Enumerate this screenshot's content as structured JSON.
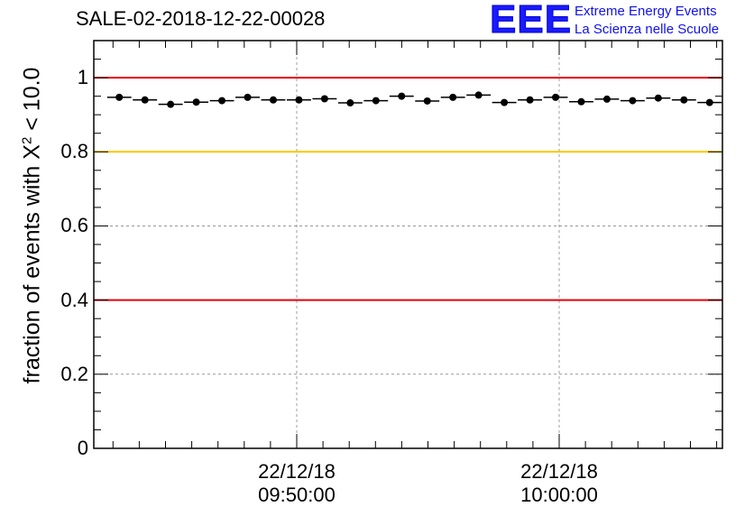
{
  "title": "SALE-02-2018-12-22-00028",
  "logo": {
    "text": "EEE",
    "line1": "Extreme Energy Events",
    "line2": "La Scienza nelle Scuole"
  },
  "chart_data": {
    "type": "scatter",
    "title": "SALE-02-2018-12-22-00028",
    "ylabel_prefix": "fraction of events with X",
    "ylabel_sup": "2",
    "ylabel_suffix": " < 10.0",
    "ylim": [
      0,
      1.1
    ],
    "yticks": [
      "0",
      "0.2",
      "0.4",
      "0.6",
      "0.8",
      "1"
    ],
    "xticks": [
      {
        "date": "22/12/18",
        "time": "09:50:00"
      },
      {
        "date": "22/12/18",
        "time": "10:00:00"
      }
    ],
    "reference_lines": [
      {
        "y": 1.0,
        "color": "#e8000b"
      },
      {
        "y": 0.8,
        "color": "#ffc400"
      },
      {
        "y": 0.4,
        "color": "#e8000b"
      }
    ],
    "values": [
      0.947,
      0.94,
      0.928,
      0.934,
      0.938,
      0.947,
      0.94,
      0.94,
      0.943,
      0.932,
      0.938,
      0.95,
      0.937,
      0.947,
      0.953,
      0.933,
      0.94,
      0.947,
      0.935,
      0.942,
      0.938,
      0.945,
      0.94,
      0.933
    ]
  }
}
